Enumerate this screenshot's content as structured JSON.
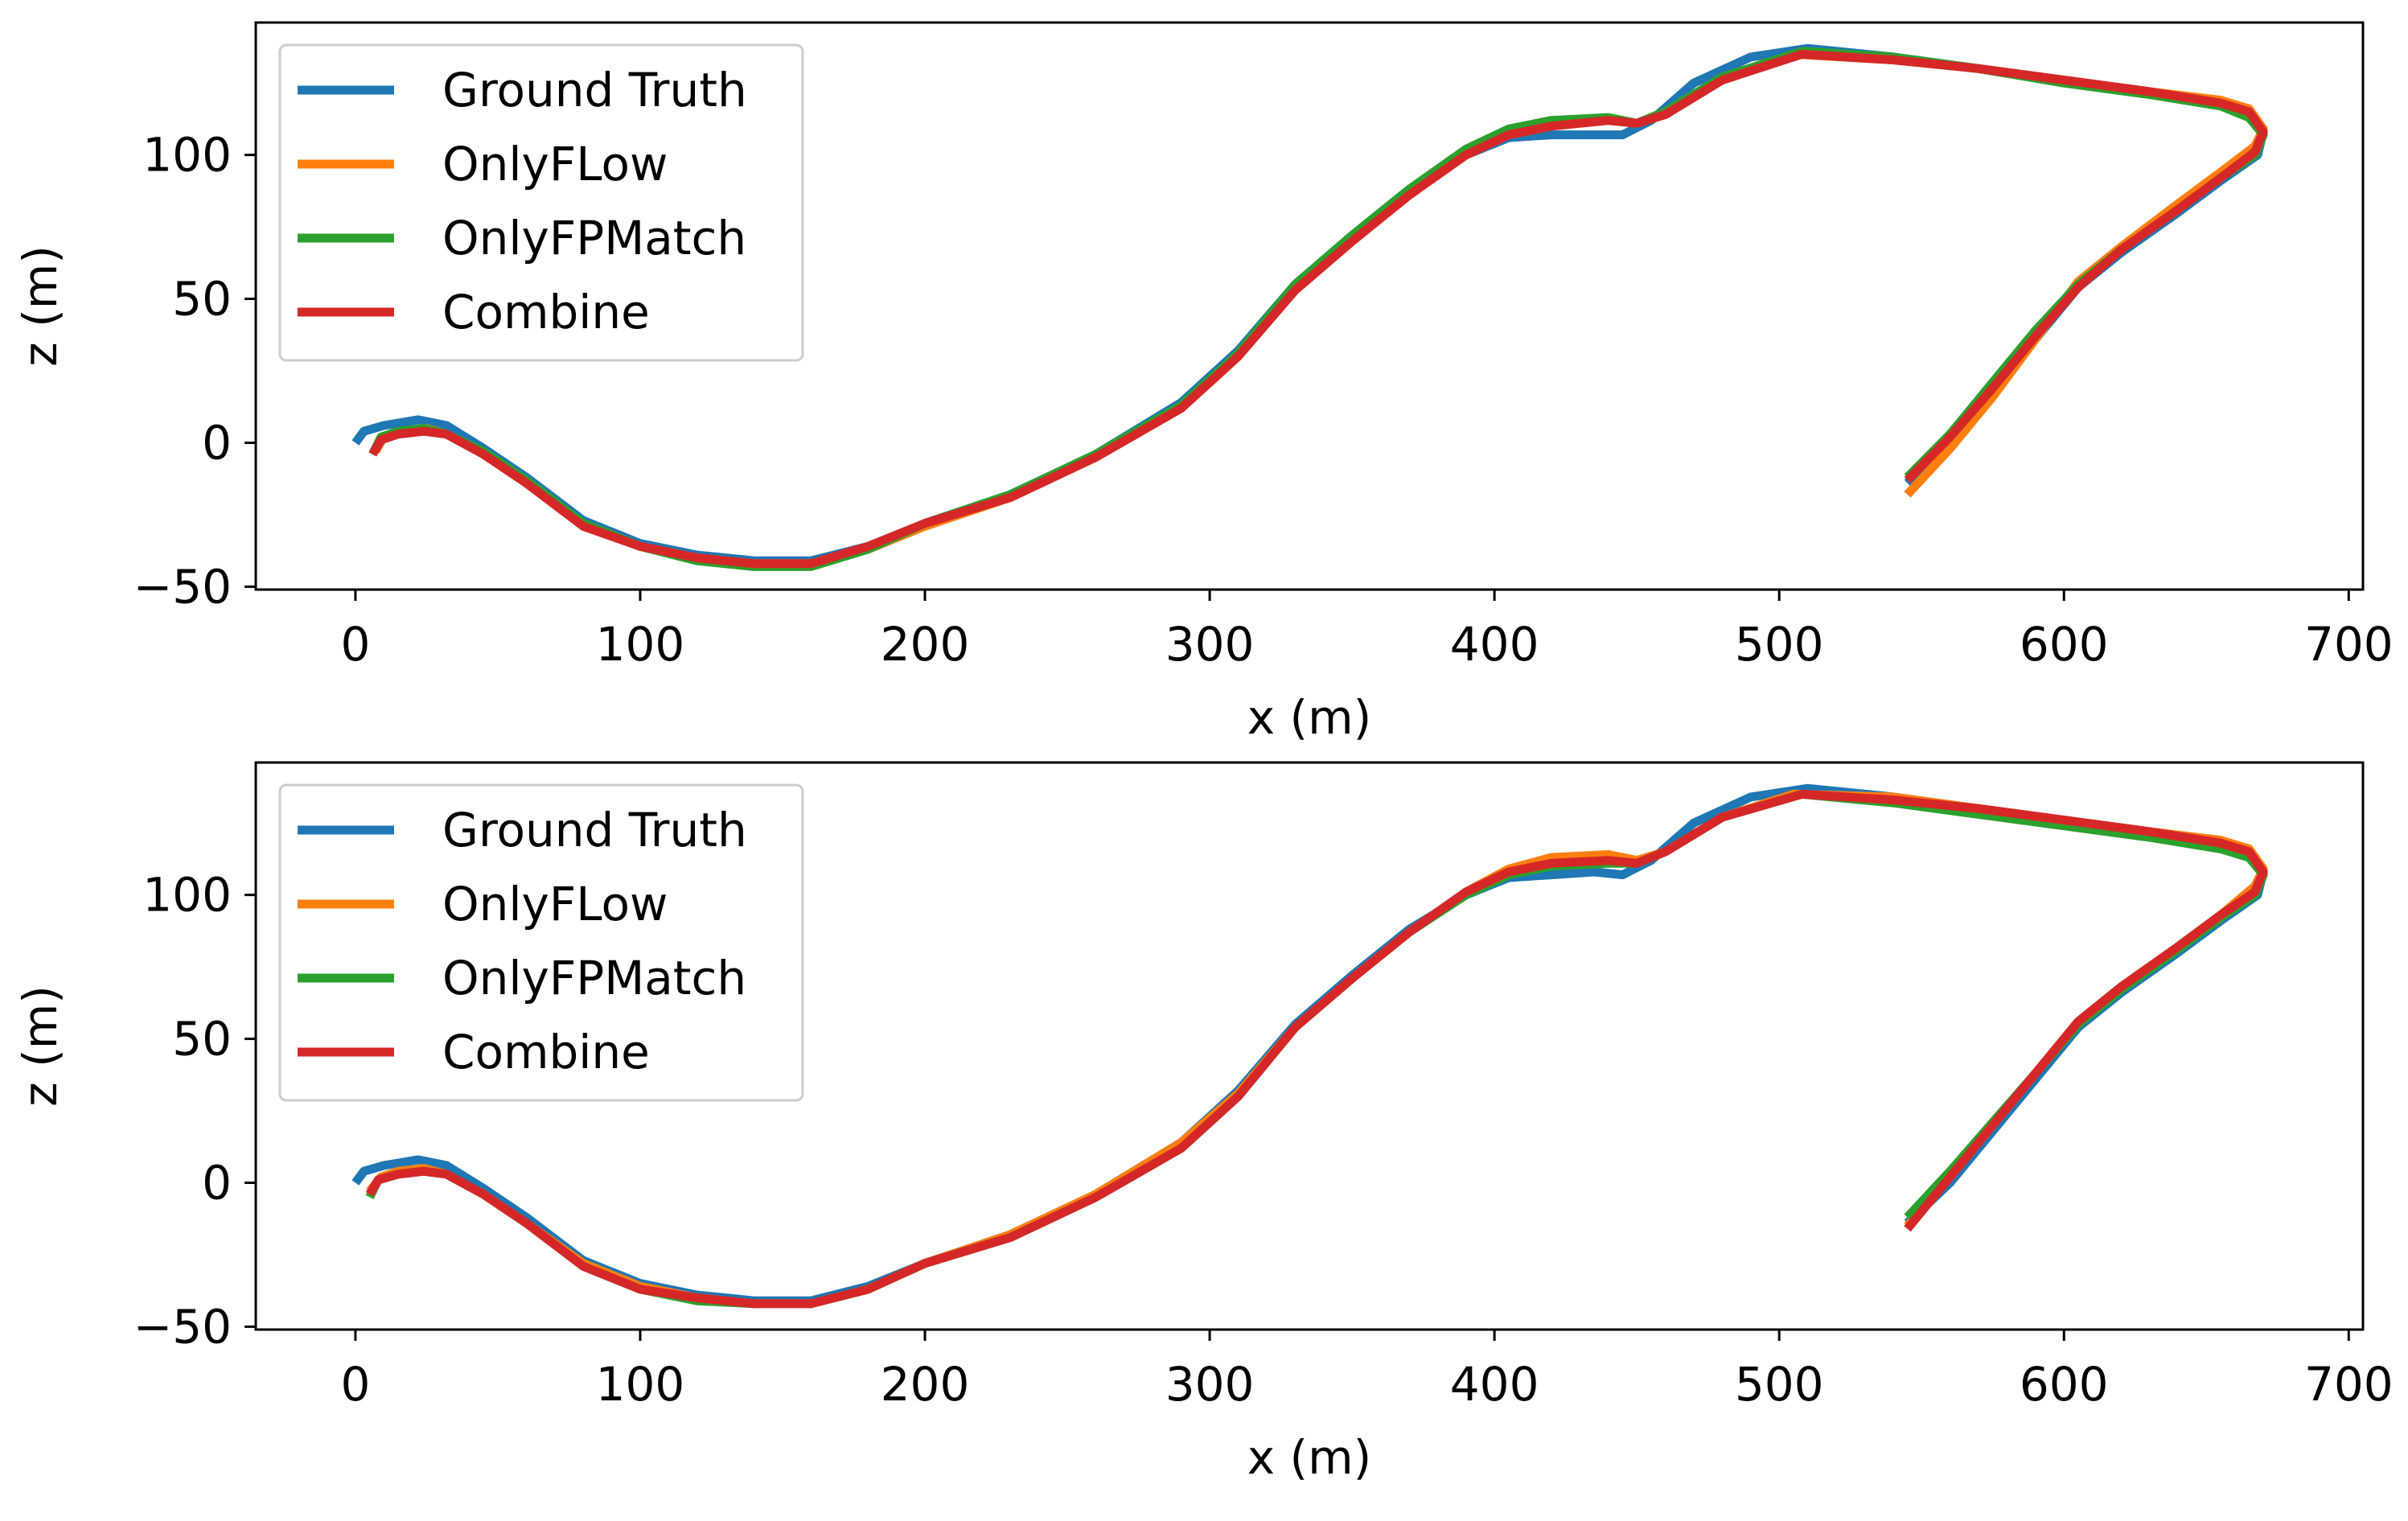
{
  "figure": {
    "description": "Two trajectory comparison plots of z versus x"
  },
  "colors": {
    "Ground Truth": "#1f77b4",
    "OnlyFLow": "#ff7f0e",
    "OnlyFPMatch": "#2ca02c",
    "Combine": "#d62728"
  },
  "chart_data": [
    {
      "type": "line",
      "title": "",
      "xlabel": "x (m)",
      "ylabel": "z (m)",
      "xlim": [
        -35,
        705
      ],
      "ylim": [
        -51,
        146
      ],
      "xticks": [
        0,
        100,
        200,
        300,
        400,
        500,
        600,
        700
      ],
      "xtick_labels": [
        "0",
        "100",
        "200",
        "300",
        "400",
        "500",
        "600",
        "700"
      ],
      "yticks": [
        -50,
        0,
        50,
        100
      ],
      "ytick_labels": [
        "−50",
        "0",
        "50",
        "100"
      ],
      "legend_position": "top-left",
      "series": [
        {
          "name": "Ground Truth",
          "x": [
            0,
            3,
            10,
            22,
            32,
            45,
            60,
            80,
            100,
            120,
            140,
            160,
            180,
            200,
            230,
            260,
            290,
            310,
            330,
            350,
            370,
            390,
            405,
            420,
            435,
            445,
            455,
            470,
            490,
            510,
            540,
            570,
            600,
            630,
            655,
            665,
            670,
            668,
            655,
            640,
            620,
            605,
            590,
            575,
            560,
            545
          ],
          "y": [
            0,
            4,
            6,
            8,
            6,
            -2,
            -12,
            -27,
            -35,
            -39,
            -41,
            -41,
            -36,
            -28,
            -18,
            -4,
            14,
            32,
            55,
            72,
            88,
            100,
            106,
            107,
            107,
            107,
            112,
            125,
            134,
            137,
            134,
            130,
            126,
            122,
            118,
            114,
            108,
            100,
            91,
            80,
            66,
            54,
            36,
            18,
            0,
            -14
          ]
        },
        {
          "name": "OnlyFLow",
          "x": [
            7,
            10,
            16,
            25,
            32,
            45,
            60,
            80,
            100,
            120,
            140,
            160,
            180,
            200,
            230,
            260,
            290,
            310,
            330,
            350,
            370,
            390,
            405,
            420,
            440,
            450,
            460,
            480,
            505,
            540,
            570,
            600,
            630,
            655,
            665,
            670,
            667,
            655,
            640,
            620,
            605,
            590,
            575,
            560,
            545
          ],
          "y": [
            -3,
            2,
            4,
            5,
            3,
            -4,
            -14,
            -28,
            -36,
            -40,
            -42,
            -42,
            -37,
            -29,
            -19,
            -5,
            12,
            30,
            53,
            70,
            86,
            100,
            107,
            110,
            112,
            111,
            115,
            127,
            135,
            133,
            130,
            126,
            122,
            119,
            116,
            109,
            103,
            94,
            83,
            68,
            56,
            36,
            16,
            -2,
            -18
          ]
        },
        {
          "name": "OnlyFPMatch",
          "x": [
            6,
            9,
            15,
            24,
            32,
            45,
            60,
            80,
            100,
            120,
            140,
            160,
            180,
            200,
            230,
            260,
            290,
            310,
            330,
            350,
            370,
            390,
            405,
            420,
            440,
            450,
            460,
            480,
            508,
            540,
            570,
            600,
            630,
            655,
            665,
            670,
            667,
            655,
            640,
            620,
            605,
            590,
            575,
            560,
            545
          ],
          "y": [
            -4,
            2,
            4,
            5,
            3,
            -3,
            -13,
            -28,
            -36,
            -41,
            -43,
            -43,
            -37,
            -28,
            -18,
            -4,
            13,
            31,
            55,
            72,
            88,
            102,
            109,
            112,
            113,
            111,
            115,
            127,
            136,
            134,
            130,
            125,
            121,
            117,
            113,
            107,
            100,
            92,
            81,
            67,
            55,
            39,
            21,
            3,
            -12
          ]
        },
        {
          "name": "Combine",
          "x": [
            6,
            9,
            15,
            24,
            32,
            45,
            60,
            80,
            100,
            120,
            140,
            160,
            180,
            200,
            230,
            260,
            290,
            310,
            330,
            350,
            370,
            390,
            405,
            420,
            440,
            450,
            460,
            480,
            508,
            540,
            570,
            600,
            630,
            655,
            665,
            670,
            667,
            655,
            640,
            620,
            605,
            590,
            575,
            560,
            545
          ],
          "y": [
            -4,
            1,
            3,
            4,
            3,
            -4,
            -14,
            -29,
            -36,
            -40,
            -42,
            -42,
            -36,
            -28,
            -19,
            -5,
            12,
            30,
            53,
            70,
            86,
            100,
            107,
            110,
            112,
            111,
            114,
            126,
            135,
            133,
            130,
            126,
            122,
            118,
            115,
            108,
            101,
            92,
            81,
            67,
            54,
            37,
            19,
            2,
            -13
          ]
        }
      ]
    },
    {
      "type": "line",
      "title": "",
      "xlabel": "x (m)",
      "ylabel": "z (m)",
      "xlim": [
        -35,
        705
      ],
      "ylim": [
        -51,
        146
      ],
      "xticks": [
        0,
        100,
        200,
        300,
        400,
        500,
        600,
        700
      ],
      "xtick_labels": [
        "0",
        "100",
        "200",
        "300",
        "400",
        "500",
        "600",
        "700"
      ],
      "yticks": [
        -50,
        0,
        50,
        100
      ],
      "ytick_labels": [
        "−50",
        "0",
        "50",
        "100"
      ],
      "legend_position": "top-left",
      "series": [
        {
          "name": "Ground Truth",
          "x": [
            0,
            3,
            10,
            22,
            32,
            45,
            60,
            80,
            100,
            120,
            140,
            160,
            180,
            200,
            230,
            260,
            290,
            310,
            330,
            350,
            370,
            390,
            405,
            420,
            435,
            445,
            455,
            470,
            490,
            510,
            540,
            570,
            600,
            630,
            655,
            665,
            670,
            668,
            655,
            640,
            620,
            605,
            590,
            575,
            560,
            545
          ],
          "y": [
            0,
            4,
            6,
            8,
            6,
            -2,
            -12,
            -27,
            -35,
            -39,
            -41,
            -41,
            -36,
            -28,
            -18,
            -4,
            14,
            32,
            55,
            72,
            88,
            100,
            106,
            107,
            108,
            107,
            112,
            125,
            134,
            137,
            134,
            130,
            126,
            122,
            118,
            114,
            108,
            100,
            91,
            80,
            66,
            54,
            36,
            18,
            0,
            -14
          ]
        },
        {
          "name": "OnlyFLow",
          "x": [
            5,
            9,
            15,
            24,
            32,
            45,
            60,
            80,
            100,
            120,
            140,
            160,
            180,
            200,
            230,
            260,
            290,
            310,
            330,
            350,
            370,
            390,
            405,
            420,
            440,
            450,
            460,
            480,
            505,
            540,
            570,
            600,
            630,
            655,
            665,
            670,
            667,
            655,
            640,
            620,
            605,
            590,
            575,
            560,
            545
          ],
          "y": [
            -3,
            2,
            4,
            5,
            3,
            -4,
            -14,
            -28,
            -36,
            -40,
            -42,
            -42,
            -37,
            -28,
            -18,
            -4,
            14,
            31,
            54,
            71,
            87,
            101,
            109,
            113,
            114,
            112,
            115,
            127,
            135,
            134,
            130,
            126,
            122,
            119,
            116,
            109,
            103,
            93,
            82,
            68,
            56,
            38,
            20,
            2,
            -15
          ]
        },
        {
          "name": "OnlyFPMatch",
          "x": [
            5,
            8,
            15,
            24,
            32,
            45,
            60,
            80,
            100,
            120,
            140,
            160,
            180,
            200,
            230,
            260,
            290,
            310,
            330,
            350,
            370,
            390,
            405,
            420,
            440,
            450,
            460,
            480,
            508,
            540,
            570,
            600,
            630,
            655,
            665,
            670,
            667,
            655,
            640,
            620,
            605,
            590,
            575,
            560,
            545
          ],
          "y": [
            -5,
            1,
            3,
            4,
            3,
            -4,
            -14,
            -29,
            -37,
            -41,
            -42,
            -42,
            -37,
            -28,
            -19,
            -5,
            12,
            30,
            54,
            71,
            87,
            100,
            107,
            110,
            111,
            111,
            115,
            127,
            135,
            132,
            128,
            124,
            120,
            116,
            113,
            107,
            100,
            92,
            81,
            67,
            55,
            38,
            21,
            4,
            -12
          ]
        },
        {
          "name": "Combine",
          "x": [
            5,
            8,
            15,
            24,
            32,
            45,
            60,
            80,
            100,
            120,
            140,
            160,
            180,
            200,
            230,
            260,
            290,
            310,
            330,
            350,
            370,
            390,
            405,
            420,
            440,
            450,
            460,
            480,
            508,
            540,
            570,
            600,
            630,
            655,
            665,
            670,
            667,
            655,
            640,
            620,
            605,
            590,
            575,
            560,
            545
          ],
          "y": [
            -4,
            1,
            3,
            4,
            3,
            -4,
            -14,
            -29,
            -37,
            -40,
            -42,
            -42,
            -37,
            -28,
            -19,
            -5,
            12,
            30,
            54,
            71,
            87,
            101,
            108,
            111,
            112,
            111,
            115,
            127,
            135,
            133,
            130,
            126,
            122,
            118,
            115,
            108,
            101,
            93,
            82,
            68,
            56,
            38,
            20,
            2,
            -16
          ]
        }
      ]
    }
  ]
}
